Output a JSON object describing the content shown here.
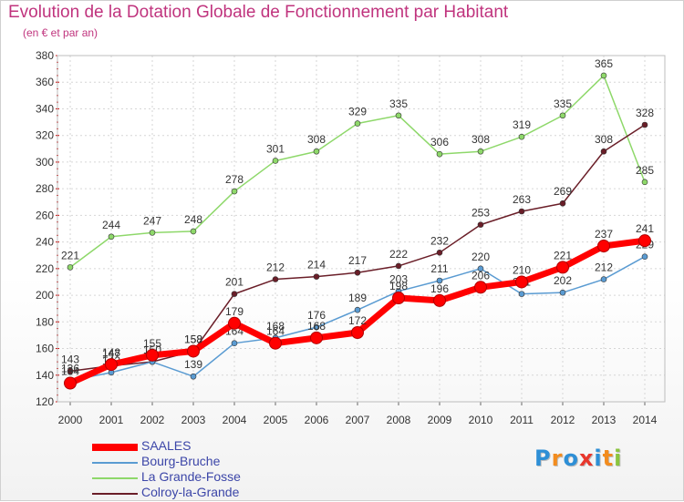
{
  "chart_data": {
    "type": "line",
    "title": "Evolution de la Dotation Globale de Fonctionnement par Habitant",
    "subtitle": "(en € et par an)",
    "x": [
      "2000",
      "2001",
      "2002",
      "2003",
      "2004",
      "2005",
      "2006",
      "2007",
      "2008",
      "2009",
      "2010",
      "2011",
      "2012",
      "2013",
      "2014"
    ],
    "ylim": [
      120,
      380
    ],
    "yticks": [
      120,
      140,
      160,
      180,
      200,
      220,
      240,
      260,
      280,
      300,
      320,
      340,
      360,
      380
    ],
    "grid": true,
    "legend_position": "bottom-left",
    "series": [
      {
        "name": "La Grande-Fosse",
        "color": "#8ed86a",
        "values": [
          221,
          244,
          247,
          248,
          278,
          301,
          308,
          329,
          335,
          306,
          308,
          319,
          335,
          365,
          285
        ]
      },
      {
        "name": "Colroy-la-Grande",
        "color": "#6a1e28",
        "values": [
          143,
          147,
          150,
          158,
          201,
          212,
          214,
          217,
          222,
          232,
          253,
          263,
          269,
          308,
          328
        ]
      },
      {
        "name": "Bourg-Bruche",
        "color": "#5a9bd2",
        "values": [
          136,
          142,
          150,
          139,
          164,
          168,
          176,
          189,
          203,
          211,
          220,
          201,
          202,
          212,
          229
        ]
      },
      {
        "name": "SAALES",
        "color": "#ff0000",
        "values": [
          134,
          148,
          155,
          158,
          179,
          164,
          168,
          172,
          198,
          196,
          206,
          210,
          221,
          237,
          241
        ]
      }
    ]
  },
  "legend": [
    {
      "name": "SAALES",
      "color": "#ff0000"
    },
    {
      "name": "Bourg-Bruche",
      "color": "#5a9bd2"
    },
    {
      "name": "La Grande-Fosse",
      "color": "#8ed86a"
    },
    {
      "name": "Colroy-la-Grande",
      "color": "#6a1e28"
    }
  ],
  "logo": {
    "letters": [
      "P",
      "r",
      "o",
      "x",
      "i",
      "t",
      "i"
    ],
    "colors": [
      "#2e8fd6",
      "#f28c1e",
      "#2e8fd6",
      "#e8372c",
      "#2e8fd6",
      "#f28c1e",
      "#8bc53f"
    ]
  }
}
